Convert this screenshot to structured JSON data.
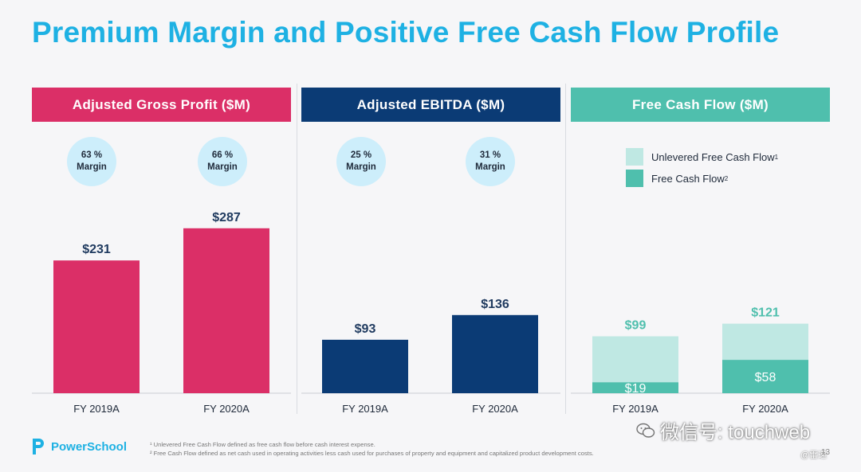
{
  "slide": {
    "title": "Premium Margin and Positive Free Cash Flow Profile",
    "logo_text": "PowerSchool",
    "page_number": "13",
    "footnote_1": "¹ Unlevered Free Cash Flow defined as free cash flow before cash interest expense.",
    "footnote_2": "² Free Cash Flow defined as net cash used in operating activities less cash used for purchases of property and equipment and capitalized product development costs.",
    "watermark_text": "微信号: touchweb",
    "watermark_sub": "@雷递"
  },
  "colors": {
    "title": "#1eb1e3",
    "gross_profit": "#db2f67",
    "ebitda": "#0b3b75",
    "fcf": "#4fbfad",
    "ufcf": "#bfe8e3",
    "circle": "#cdeefb"
  },
  "margins": {
    "gross_2019": {
      "value": "63 %",
      "label": "Margin"
    },
    "gross_2020": {
      "value": "66 %",
      "label": "Margin"
    },
    "ebitda_2019": {
      "value": "25 %",
      "label": "Margin"
    },
    "ebitda_2020": {
      "value": "31 %",
      "label": "Margin"
    }
  },
  "legend": {
    "ufcf": "Unlevered Free Cash Flow",
    "ufcf_sup": "1",
    "fcf": "Free Cash Flow",
    "fcf_sup": "2"
  },
  "chart_data": [
    {
      "type": "bar",
      "title": "Adjusted Gross Profit ($M)",
      "categories": [
        "FY 2019A",
        "FY 2020A"
      ],
      "values": [
        231,
        287
      ],
      "value_labels": [
        "$231",
        "$287"
      ]
    },
    {
      "type": "bar",
      "title": "Adjusted EBITDA ($M)",
      "categories": [
        "FY 2019A",
        "FY 2020A"
      ],
      "values": [
        93,
        136
      ],
      "value_labels": [
        "$93",
        "$136"
      ]
    },
    {
      "type": "bar",
      "title": "Free Cash Flow ($M)",
      "categories": [
        "FY 2019A",
        "FY 2020A"
      ],
      "series": [
        {
          "name": "Unlevered Free Cash Flow",
          "values": [
            99,
            121
          ],
          "value_labels": [
            "$99",
            "$121"
          ]
        },
        {
          "name": "Free Cash Flow",
          "values": [
            19,
            58
          ],
          "value_labels": [
            "$19",
            "$58"
          ]
        }
      ]
    }
  ]
}
